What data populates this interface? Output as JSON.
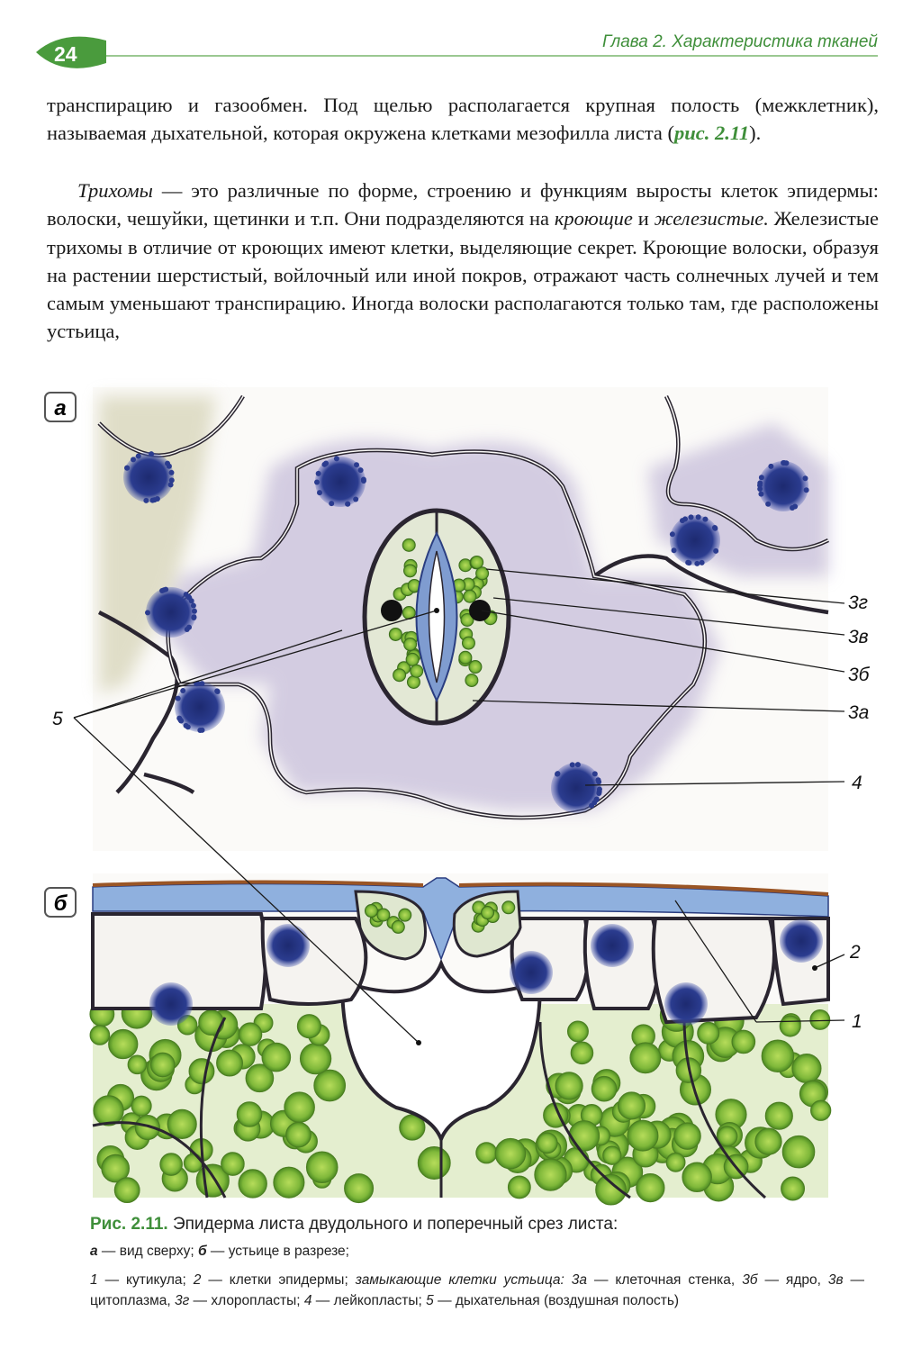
{
  "header": {
    "page_number": "24",
    "running_title": "Глава 2. Характеристика тканей"
  },
  "body": {
    "paragraphs": [
      [
        "транспирацию и газообмен. Под щелью располагается крупная полость (межклетник), называемая дыхательной, которая окружена клетками мезофилла листа (",
        "рис. 2.11",
        ")."
      ],
      [
        "Трихомы",
        " — это различные по форме, строению и функциям выросты клеток эпидермы: волоски, чешуйки, щетинки и т.п. Они подразделяются на ",
        "кроющие",
        " и ",
        "железистые.",
        " Железистые трихомы в отличие от кроющих имеют клетки, выделяющие секрет. Кроющие волоски, образуя на растении шерстистый, войлочный или иной покров, отражают часть солнечных лучей и тем самым уменьшают транспирацию. Иногда волоски располагаются только там, где расположены устьица,"
      ]
    ]
  },
  "figure": {
    "panels": [
      "а",
      "б"
    ],
    "callouts": [
      "3г",
      "3в",
      "3б",
      "3а",
      "4",
      "5",
      "2",
      "1"
    ],
    "caption": {
      "title": "Рис. 2.11.",
      "text": " Эпидерма листа двудольного и поперечный срез листа:",
      "lines": [
        [
          "а",
          " — вид сверху; ",
          "б",
          " — устьице в разрезе;"
        ],
        [
          "1",
          " — кутикула; ",
          "2",
          " — клетки эпидермы; ",
          "замыкающие клетки устьица: 3а",
          " — клеточная стенка, ",
          "3б",
          " — ядро, ",
          "3в",
          " — цитоплазма, ",
          "3г",
          " — хлоропласты; ",
          "4",
          " — лейкопласты; ",
          "5",
          " — дыхательная (воздушная полость)"
        ]
      ]
    }
  }
}
